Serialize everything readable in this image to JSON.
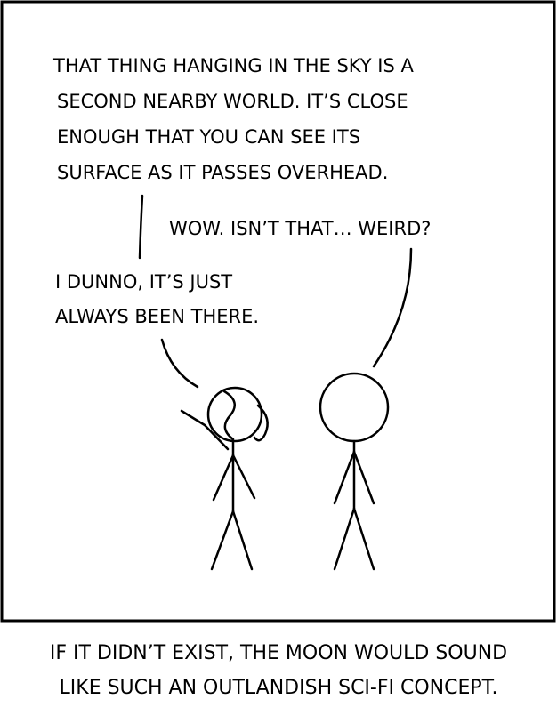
{
  "panel": {
    "narration": [
      "THAT THING HANGING IN THE SKY IS A",
      "SECOND NEARBY WORLD. IT’S CLOSE",
      "ENOUGH THAT YOU CAN SEE ITS",
      "SURFACE AS IT PASSES OVERHEAD."
    ],
    "reply": "WOW. ISN’T THAT… WEIRD?",
    "answer": [
      "I DUNNO, IT’S JUST",
      "ALWAYS BEEN THERE."
    ]
  },
  "caption": [
    "IF IT DIDN’T EXIST, THE MOON WOULD SOUND",
    "LIKE SUCH AN OUTLANDISH SCI-FI CONCEPT."
  ]
}
